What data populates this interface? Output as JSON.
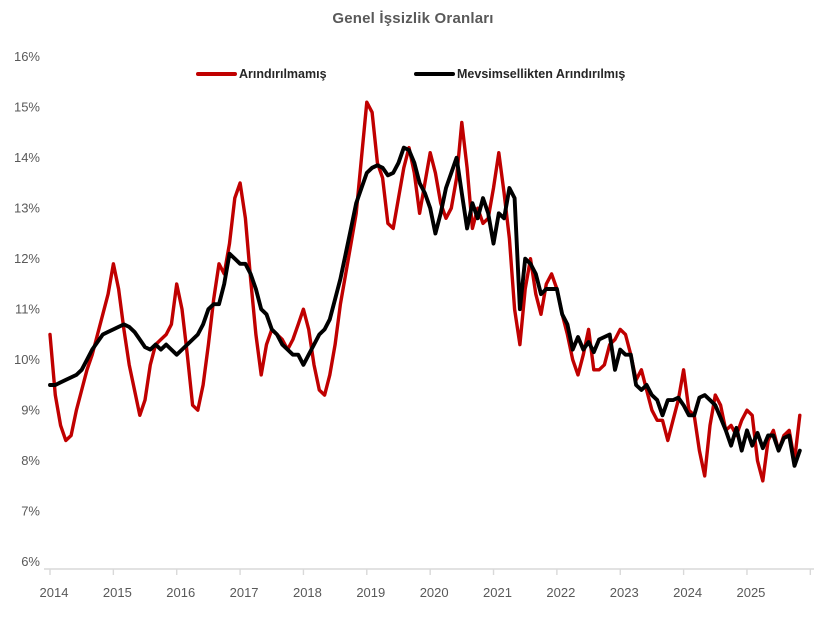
{
  "title": "Genel İşsizlik Oranları",
  "legend": {
    "items": [
      {
        "label": "Arındırılmamış",
        "color": "#C00000"
      },
      {
        "label": "Mevsimsellikten Arındırılmış",
        "color": "#000000"
      }
    ]
  },
  "y_axis": {
    "tick_labels": [
      "16%",
      "15%",
      "14%",
      "13%",
      "12%",
      "11%",
      "10%",
      "9%",
      "8%",
      "7%",
      "6%"
    ],
    "min": 6,
    "max": 16,
    "unit": "%"
  },
  "x_axis": {
    "tick_labels": [
      "2014",
      "2015",
      "2016",
      "2017",
      "2018",
      "2019",
      "2020",
      "2021",
      "2022",
      "2023",
      "2024",
      "2025"
    ]
  },
  "colors": {
    "background": "#FFFFFF",
    "axis_line": "#D9D9D9",
    "tick_text": "#595959",
    "title_text": "#595959",
    "legend_text": "#262626",
    "series_unadjusted": "#C00000",
    "series_seasonally_adjusted": "#000000"
  },
  "chart_data": {
    "type": "line",
    "title": "Genel İşsizlik Oranları",
    "x_frequency": "monthly",
    "x_start": "2014-01",
    "x_end": "2025-11",
    "xlabel": "",
    "ylabel": "",
    "ylim": [
      6,
      16
    ],
    "y_unit": "percent",
    "grid": false,
    "legend_position": "top",
    "series": [
      {
        "name": "Arındırılmamış",
        "color": "#C00000",
        "values": [
          10.5,
          9.3,
          8.7,
          8.4,
          8.5,
          9.0,
          9.4,
          9.8,
          10.1,
          10.5,
          10.9,
          11.3,
          11.9,
          11.4,
          10.6,
          9.9,
          9.4,
          8.9,
          9.2,
          9.9,
          10.3,
          10.4,
          10.5,
          10.7,
          11.5,
          11.0,
          10.1,
          9.1,
          9.0,
          9.5,
          10.3,
          11.2,
          11.9,
          11.7,
          12.3,
          13.2,
          13.5,
          12.8,
          11.6,
          10.5,
          9.7,
          10.3,
          10.6,
          10.5,
          10.4,
          10.2,
          10.4,
          10.7,
          11.0,
          10.6,
          9.9,
          9.4,
          9.3,
          9.7,
          10.3,
          11.1,
          11.7,
          12.3,
          12.9,
          14.0,
          15.1,
          14.9,
          13.9,
          13.6,
          12.7,
          12.6,
          13.2,
          13.8,
          14.2,
          13.7,
          12.9,
          13.5,
          14.1,
          13.7,
          13.1,
          12.8,
          13.0,
          13.6,
          14.7,
          13.8,
          12.6,
          13.0,
          12.7,
          12.8,
          13.4,
          14.1,
          13.3,
          12.4,
          11.0,
          10.3,
          11.4,
          12.0,
          11.3,
          10.9,
          11.5,
          11.7,
          11.4,
          10.9,
          10.5,
          10.0,
          9.7,
          10.1,
          10.6,
          9.8,
          9.8,
          9.9,
          10.3,
          10.4,
          10.6,
          10.5,
          10.1,
          9.6,
          9.8,
          9.4,
          9.0,
          8.8,
          8.8,
          8.4,
          8.8,
          9.2,
          9.8,
          9.0,
          8.9,
          8.2,
          7.7,
          8.7,
          9.3,
          9.1,
          8.6,
          8.7,
          8.5,
          8.8,
          9.0,
          8.9,
          8.0,
          7.6,
          8.4,
          8.6,
          8.2,
          8.5,
          8.6,
          8.0,
          8.9
        ]
      },
      {
        "name": "Mevsimsellikten Arındırılmış",
        "color": "#000000",
        "values": [
          9.5,
          9.5,
          9.55,
          9.6,
          9.65,
          9.7,
          9.8,
          10.0,
          10.2,
          10.35,
          10.5,
          10.55,
          10.6,
          10.65,
          10.7,
          10.65,
          10.55,
          10.4,
          10.25,
          10.2,
          10.3,
          10.2,
          10.3,
          10.2,
          10.1,
          10.2,
          10.3,
          10.4,
          10.5,
          10.7,
          11.0,
          11.1,
          11.1,
          11.5,
          12.1,
          12.0,
          11.9,
          11.9,
          11.7,
          11.4,
          11.0,
          10.9,
          10.6,
          10.5,
          10.3,
          10.2,
          10.1,
          10.1,
          9.9,
          10.1,
          10.3,
          10.5,
          10.6,
          10.8,
          11.2,
          11.6,
          12.1,
          12.6,
          13.1,
          13.4,
          13.7,
          13.8,
          13.85,
          13.8,
          13.65,
          13.7,
          13.9,
          14.2,
          14.15,
          13.9,
          13.5,
          13.3,
          13.0,
          12.5,
          12.9,
          13.4,
          13.7,
          14.0,
          13.3,
          12.6,
          13.1,
          12.8,
          13.2,
          12.9,
          12.3,
          12.9,
          12.8,
          13.4,
          13.2,
          11.0,
          12.0,
          11.9,
          11.7,
          11.3,
          11.4,
          11.4,
          11.4,
          10.9,
          10.7,
          10.2,
          10.45,
          10.2,
          10.35,
          10.15,
          10.4,
          10.45,
          10.5,
          9.8,
          10.2,
          10.1,
          10.1,
          9.5,
          9.4,
          9.5,
          9.3,
          9.2,
          8.9,
          9.2,
          9.2,
          9.25,
          9.1,
          8.9,
          8.9,
          9.25,
          9.3,
          9.2,
          9.1,
          8.85,
          8.6,
          8.3,
          8.65,
          8.2,
          8.6,
          8.3,
          8.55,
          8.25,
          8.5,
          8.5,
          8.2,
          8.45,
          8.5,
          7.9,
          8.2
        ]
      }
    ]
  }
}
